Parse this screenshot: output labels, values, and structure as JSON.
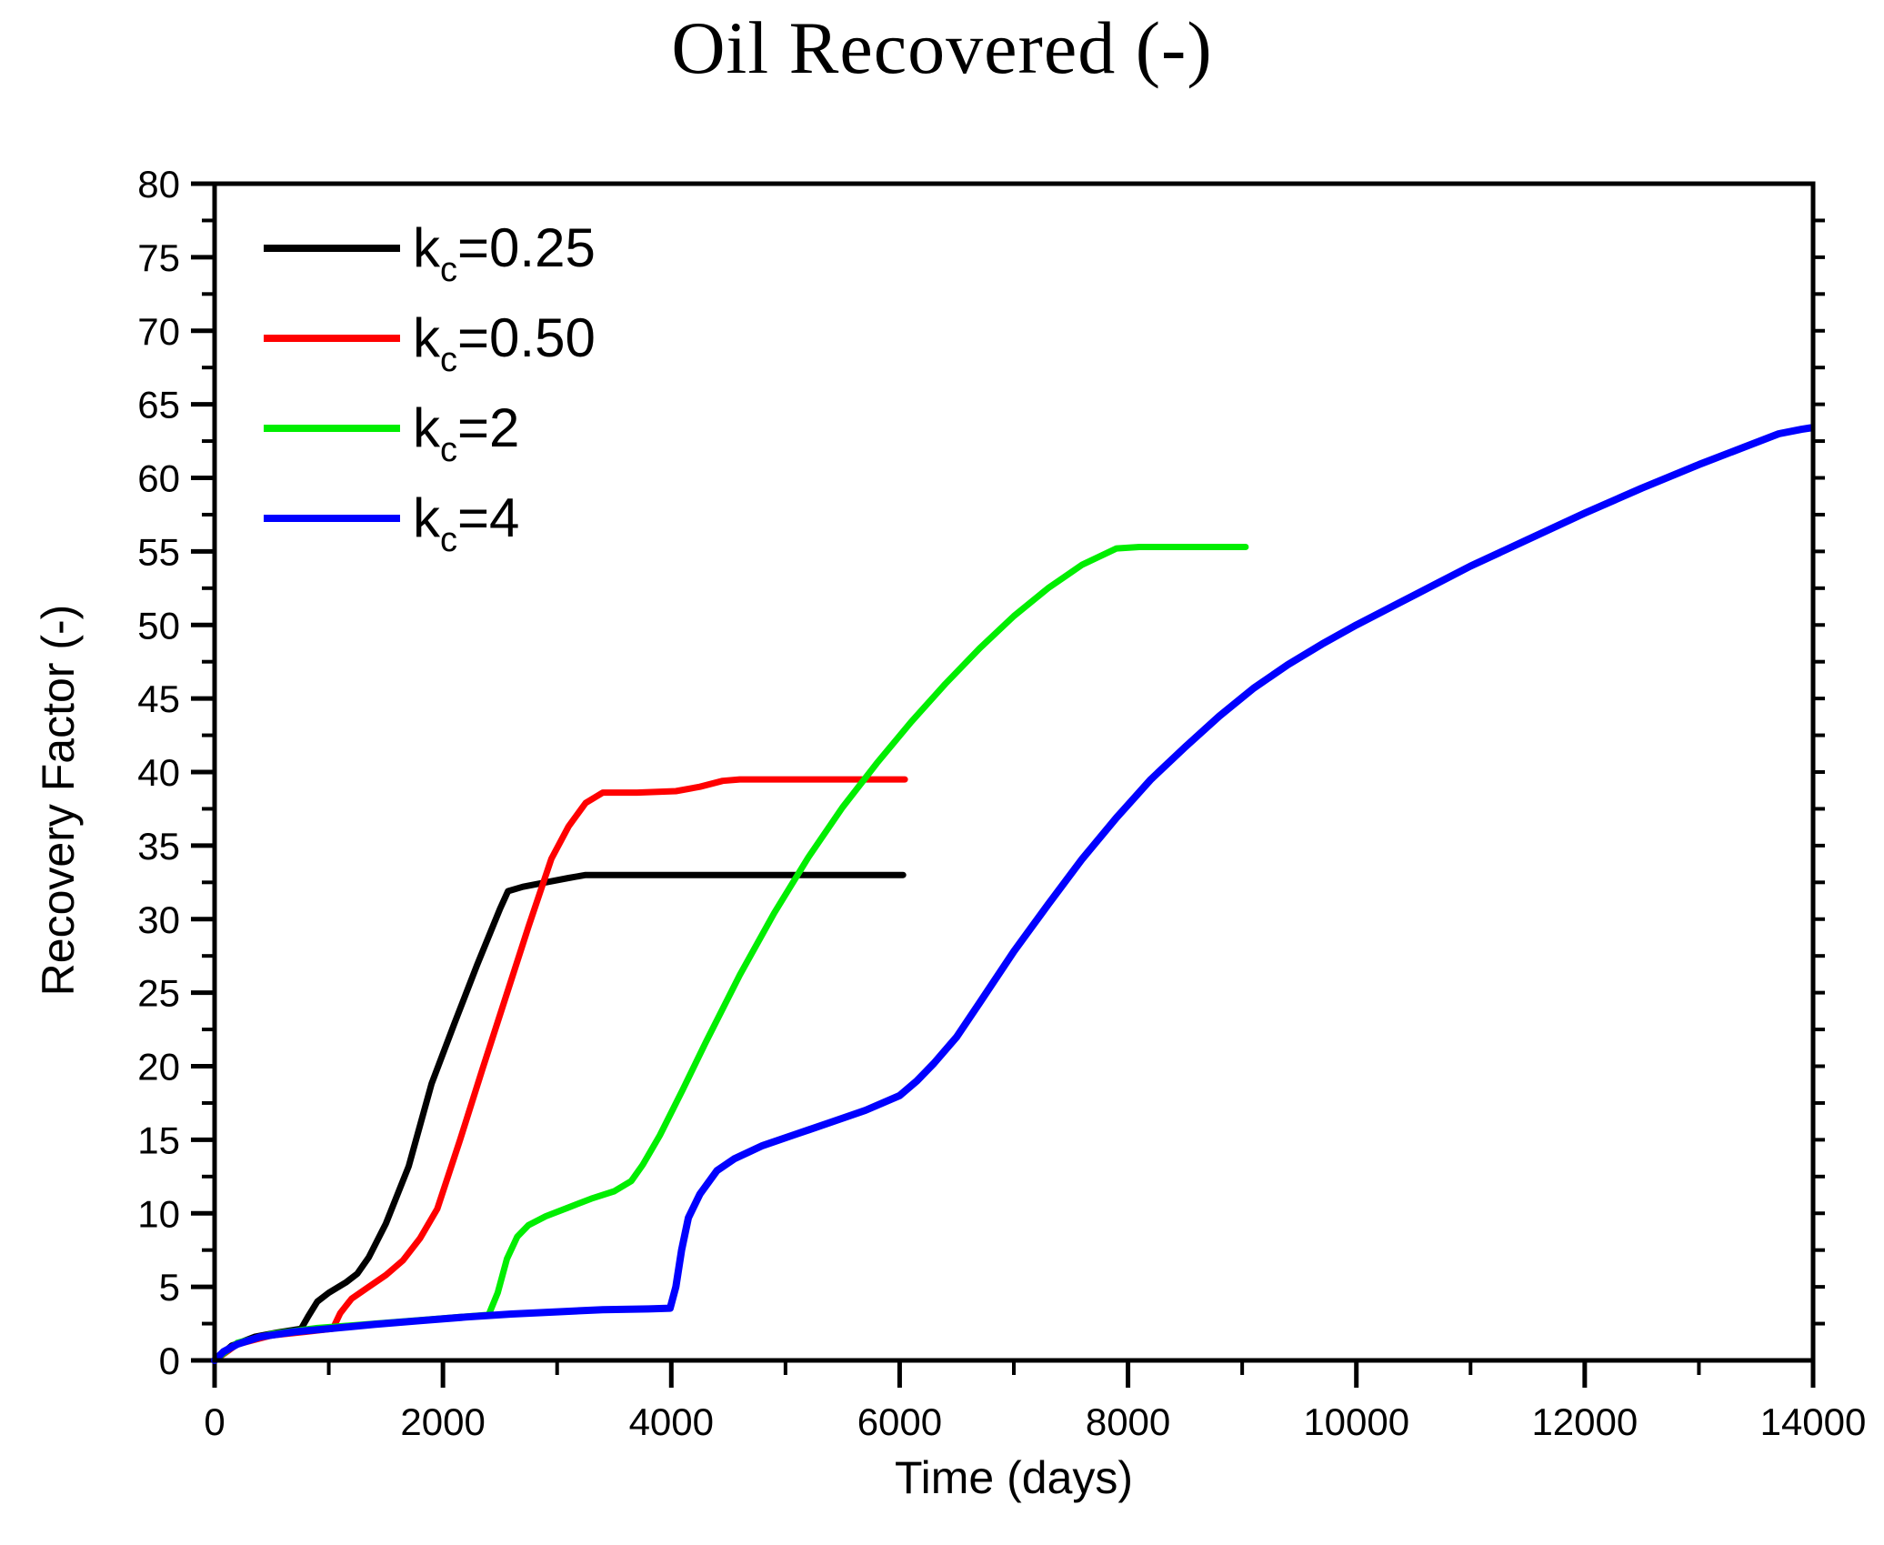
{
  "title": "Oil Recovered (-)",
  "axes": {
    "x": {
      "label": "Time (days)",
      "min": 0,
      "max": 14000,
      "major_step": 2000,
      "minor_step": 1000,
      "tick_labels": [
        "0",
        "2000",
        "4000",
        "6000",
        "8000",
        "10000",
        "12000",
        "14000"
      ]
    },
    "y": {
      "label": "Recovery Factor (-)",
      "min": 0,
      "max": 80,
      "major_step": 5,
      "minor_step": 2.5,
      "tick_labels": [
        "0",
        "5",
        "10",
        "15",
        "20",
        "25",
        "30",
        "35",
        "40",
        "45",
        "50",
        "55",
        "60",
        "65",
        "70",
        "75",
        "80"
      ]
    }
  },
  "legend": {
    "items": [
      {
        "base": "k",
        "sub": "c",
        "value": "=0.25",
        "color": "#000000"
      },
      {
        "base": "k",
        "sub": "c",
        "value": "=0.50",
        "color": "#ff0000"
      },
      {
        "base": "k",
        "sub": "c",
        "value": "=2",
        "color": "#00ee00"
      },
      {
        "base": "k",
        "sub": "c",
        "value": "=4",
        "color": "#0000ff"
      }
    ]
  },
  "chart_data": {
    "type": "line",
    "title": "Oil Recovered (-)",
    "xlabel": "Time (days)",
    "ylabel": "Recovery Factor (-)",
    "xlim": [
      0,
      14000
    ],
    "ylim": [
      0,
      80
    ],
    "x_major_tick": 2000,
    "x_minor_tick": 1000,
    "y_major_tick": 5,
    "y_minor_tick": 2.5,
    "grid": false,
    "legend_position": "upper left inside",
    "series": [
      {
        "name": "kc=0.25",
        "color": "#000000",
        "points": [
          [
            0,
            0
          ],
          [
            150,
            1.0
          ],
          [
            350,
            1.6
          ],
          [
            550,
            1.9
          ],
          [
            758,
            2.15
          ],
          [
            820,
            3.0
          ],
          [
            900,
            4.0
          ],
          [
            1000,
            4.6
          ],
          [
            1150,
            5.3
          ],
          [
            1250,
            5.9
          ],
          [
            1350,
            7.0
          ],
          [
            1500,
            9.3
          ],
          [
            1700,
            13.2
          ],
          [
            1900,
            18.8
          ],
          [
            2100,
            22.9
          ],
          [
            2300,
            26.9
          ],
          [
            2500,
            30.7
          ],
          [
            2570,
            31.9
          ],
          [
            2700,
            32.2
          ],
          [
            2900,
            32.5
          ],
          [
            3100,
            32.8
          ],
          [
            3250,
            33.0
          ],
          [
            4500,
            33.0
          ],
          [
            6030,
            33.0
          ]
        ]
      },
      {
        "name": "kc=0.50",
        "color": "#ff0000",
        "points": [
          [
            0,
            0
          ],
          [
            200,
            1.1
          ],
          [
            500,
            1.7
          ],
          [
            800,
            1.95
          ],
          [
            1035,
            2.15
          ],
          [
            1100,
            3.2
          ],
          [
            1200,
            4.2
          ],
          [
            1350,
            5.0
          ],
          [
            1500,
            5.8
          ],
          [
            1650,
            6.8
          ],
          [
            1800,
            8.3
          ],
          [
            1950,
            10.3
          ],
          [
            2150,
            15.0
          ],
          [
            2350,
            19.9
          ],
          [
            2550,
            24.7
          ],
          [
            2750,
            29.5
          ],
          [
            2950,
            34.1
          ],
          [
            3100,
            36.3
          ],
          [
            3250,
            37.9
          ],
          [
            3400,
            38.6
          ],
          [
            3700,
            38.6
          ],
          [
            4040,
            38.7
          ],
          [
            4250,
            39.0
          ],
          [
            4450,
            39.4
          ],
          [
            4600,
            39.5
          ],
          [
            5300,
            39.5
          ],
          [
            6045,
            39.5
          ]
        ]
      },
      {
        "name": "kc=2",
        "color": "#00ee00",
        "points": [
          [
            0,
            0
          ],
          [
            200,
            1.2
          ],
          [
            500,
            1.8
          ],
          [
            900,
            2.2
          ],
          [
            1400,
            2.5
          ],
          [
            1900,
            2.8
          ],
          [
            2400,
            3.1
          ],
          [
            2480,
            4.6
          ],
          [
            2560,
            6.9
          ],
          [
            2650,
            8.4
          ],
          [
            2750,
            9.2
          ],
          [
            2900,
            9.8
          ],
          [
            3100,
            10.4
          ],
          [
            3300,
            11.0
          ],
          [
            3500,
            11.5
          ],
          [
            3650,
            12.2
          ],
          [
            3750,
            13.3
          ],
          [
            3900,
            15.3
          ],
          [
            4100,
            18.4
          ],
          [
            4300,
            21.6
          ],
          [
            4600,
            26.2
          ],
          [
            4900,
            30.4
          ],
          [
            5200,
            34.2
          ],
          [
            5500,
            37.6
          ],
          [
            5800,
            40.6
          ],
          [
            6100,
            43.4
          ],
          [
            6400,
            46.0
          ],
          [
            6700,
            48.4
          ],
          [
            7000,
            50.6
          ],
          [
            7300,
            52.5
          ],
          [
            7600,
            54.1
          ],
          [
            7900,
            55.2
          ],
          [
            8100,
            55.3
          ],
          [
            8600,
            55.3
          ],
          [
            9030,
            55.3
          ]
        ]
      },
      {
        "name": "kc=4",
        "color": "#0000ff",
        "points": [
          [
            0,
            0
          ],
          [
            80,
            0.6
          ],
          [
            200,
            1.1
          ],
          [
            400,
            1.6
          ],
          [
            700,
            1.95
          ],
          [
            1000,
            2.15
          ],
          [
            1400,
            2.45
          ],
          [
            1800,
            2.7
          ],
          [
            2200,
            2.95
          ],
          [
            2600,
            3.15
          ],
          [
            3000,
            3.3
          ],
          [
            3400,
            3.45
          ],
          [
            3800,
            3.5
          ],
          [
            3990,
            3.55
          ],
          [
            4040,
            5.0
          ],
          [
            4090,
            7.5
          ],
          [
            4150,
            9.7
          ],
          [
            4250,
            11.3
          ],
          [
            4400,
            12.9
          ],
          [
            4550,
            13.7
          ],
          [
            4800,
            14.6
          ],
          [
            5100,
            15.4
          ],
          [
            5400,
            16.2
          ],
          [
            5700,
            17.0
          ],
          [
            6000,
            18.0
          ],
          [
            6150,
            19.0
          ],
          [
            6300,
            20.2
          ],
          [
            6500,
            22.0
          ],
          [
            6700,
            24.3
          ],
          [
            7000,
            27.8
          ],
          [
            7300,
            31.0
          ],
          [
            7600,
            34.1
          ],
          [
            7900,
            36.9
          ],
          [
            8200,
            39.5
          ],
          [
            8500,
            41.7
          ],
          [
            8800,
            43.8
          ],
          [
            9100,
            45.7
          ],
          [
            9400,
            47.3
          ],
          [
            9700,
            48.7
          ],
          [
            10000,
            50.0
          ],
          [
            10500,
            52.0
          ],
          [
            11000,
            54.0
          ],
          [
            11500,
            55.8
          ],
          [
            12000,
            57.6
          ],
          [
            12500,
            59.3
          ],
          [
            13000,
            60.9
          ],
          [
            13400,
            62.1
          ],
          [
            13700,
            63.0
          ],
          [
            13900,
            63.3
          ],
          [
            13980,
            63.4
          ]
        ]
      }
    ]
  }
}
